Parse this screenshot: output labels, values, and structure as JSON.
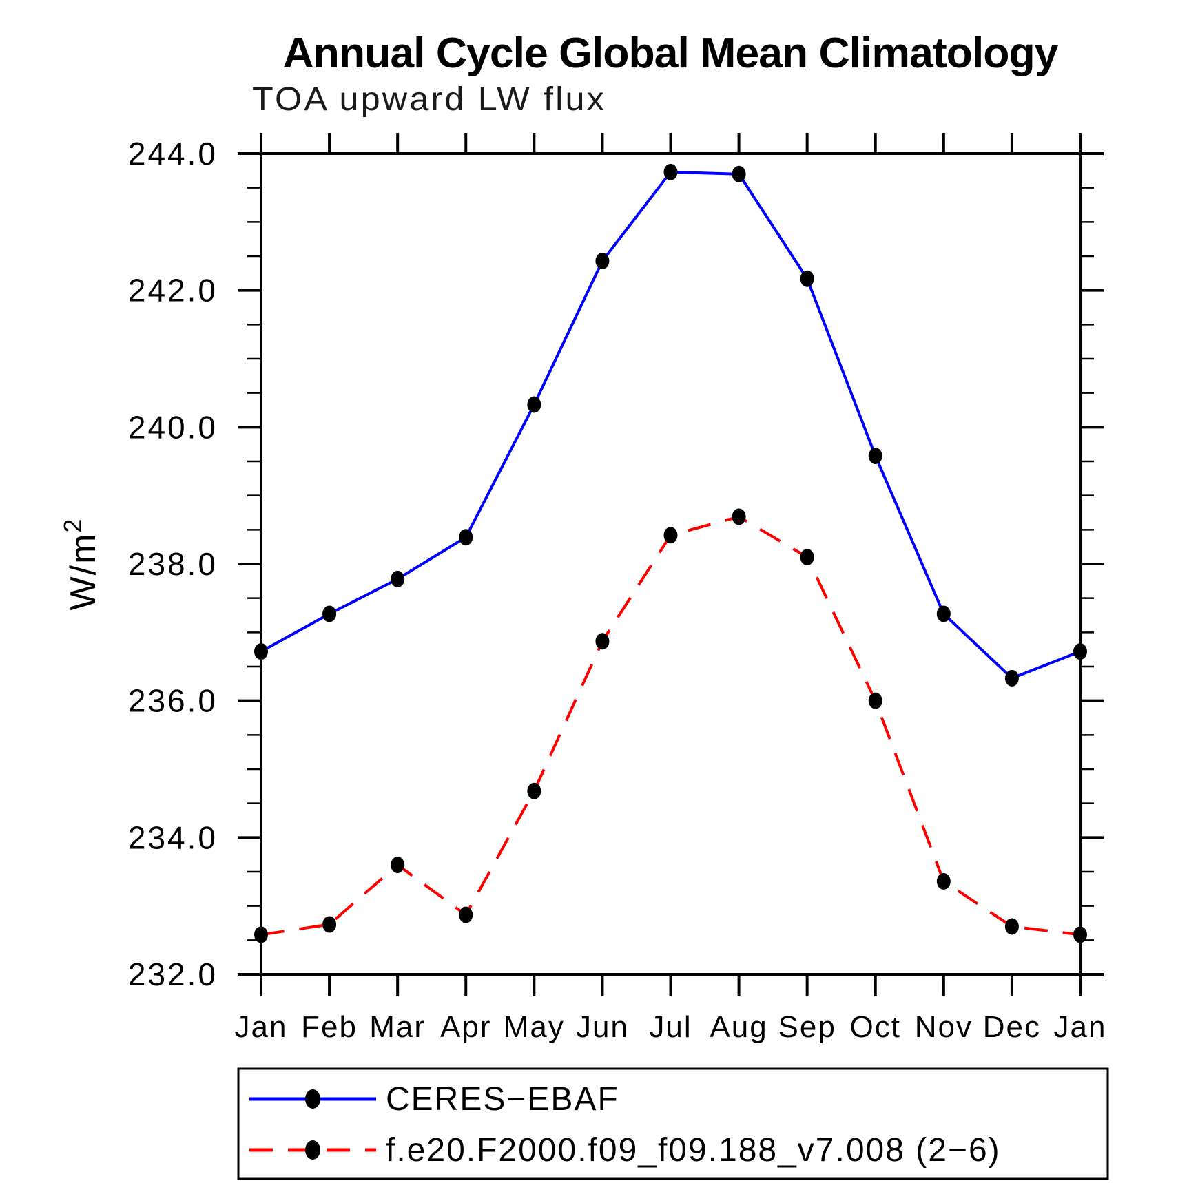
{
  "title": "Annual Cycle Global Mean Climatology",
  "subtitle": "TOA upward LW flux",
  "chart_data": {
    "type": "line",
    "title": "Annual Cycle Global Mean Climatology",
    "subtitle": "TOA upward LW flux",
    "ylabel_base": "W/m",
    "ylabel_sup": "2",
    "categories": [
      "Jan",
      "Feb",
      "Mar",
      "Apr",
      "May",
      "Jun",
      "Jul",
      "Aug",
      "Sep",
      "Oct",
      "Nov",
      "Dec",
      "Jan"
    ],
    "series": [
      {
        "name": "CERES−EBAF",
        "color": "#0000ff",
        "line_style": "solid",
        "marker": "filled-circle",
        "marker_color": "#000000",
        "values": [
          236.72,
          237.27,
          237.78,
          238.39,
          240.33,
          242.43,
          243.73,
          243.7,
          242.17,
          239.58,
          237.27,
          236.33,
          236.72
        ]
      },
      {
        "name": "f.e20.F2000.f09_f09.188_v7.008 (2−6)",
        "color": "#ff0000",
        "line_style": "dashed",
        "marker": "filled-circle",
        "marker_color": "#000000",
        "values": [
          232.58,
          232.73,
          233.6,
          232.87,
          234.68,
          236.87,
          238.42,
          238.69,
          238.1,
          236.0,
          233.36,
          232.7,
          232.58
        ]
      }
    ],
    "ylim": [
      232.0,
      244.0
    ],
    "ytick_major_step": 2.0,
    "ytick_minor_step": 0.5,
    "ytick_labels": [
      "232.0",
      "234.0",
      "236.0",
      "238.0",
      "240.0",
      "242.0",
      "244.0"
    ],
    "grid": "off",
    "legend_position": "bottom",
    "frame_color": "#000000"
  }
}
